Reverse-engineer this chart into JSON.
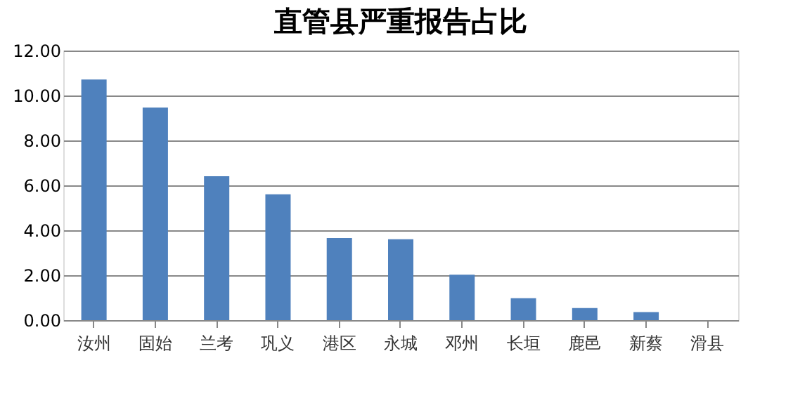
{
  "chart_data": {
    "type": "bar",
    "title": "直管县严重报告占比",
    "categories": [
      "汝州",
      "固始",
      "兰考",
      "巩义",
      "港区",
      "永城",
      "邓州",
      "长垣",
      "鹿邑",
      "新蔡",
      "滑县"
    ],
    "values": [
      10.71,
      9.46,
      6.41,
      5.6,
      3.66,
      3.6,
      2.02,
      0.98,
      0.54,
      0.36,
      0
    ],
    "color": "#4f81bd",
    "ylim": [
      0,
      12
    ],
    "yticks": [
      {
        "value": 0,
        "label": "0.00"
      },
      {
        "value": 2,
        "label": "2.00"
      },
      {
        "value": 4,
        "label": "4.00"
      },
      {
        "value": 6,
        "label": "6.00"
      },
      {
        "value": 8,
        "label": "8.00"
      },
      {
        "value": 10,
        "label": "10.00"
      },
      {
        "value": 12,
        "label": "12.00"
      }
    ],
    "grid": "y"
  }
}
